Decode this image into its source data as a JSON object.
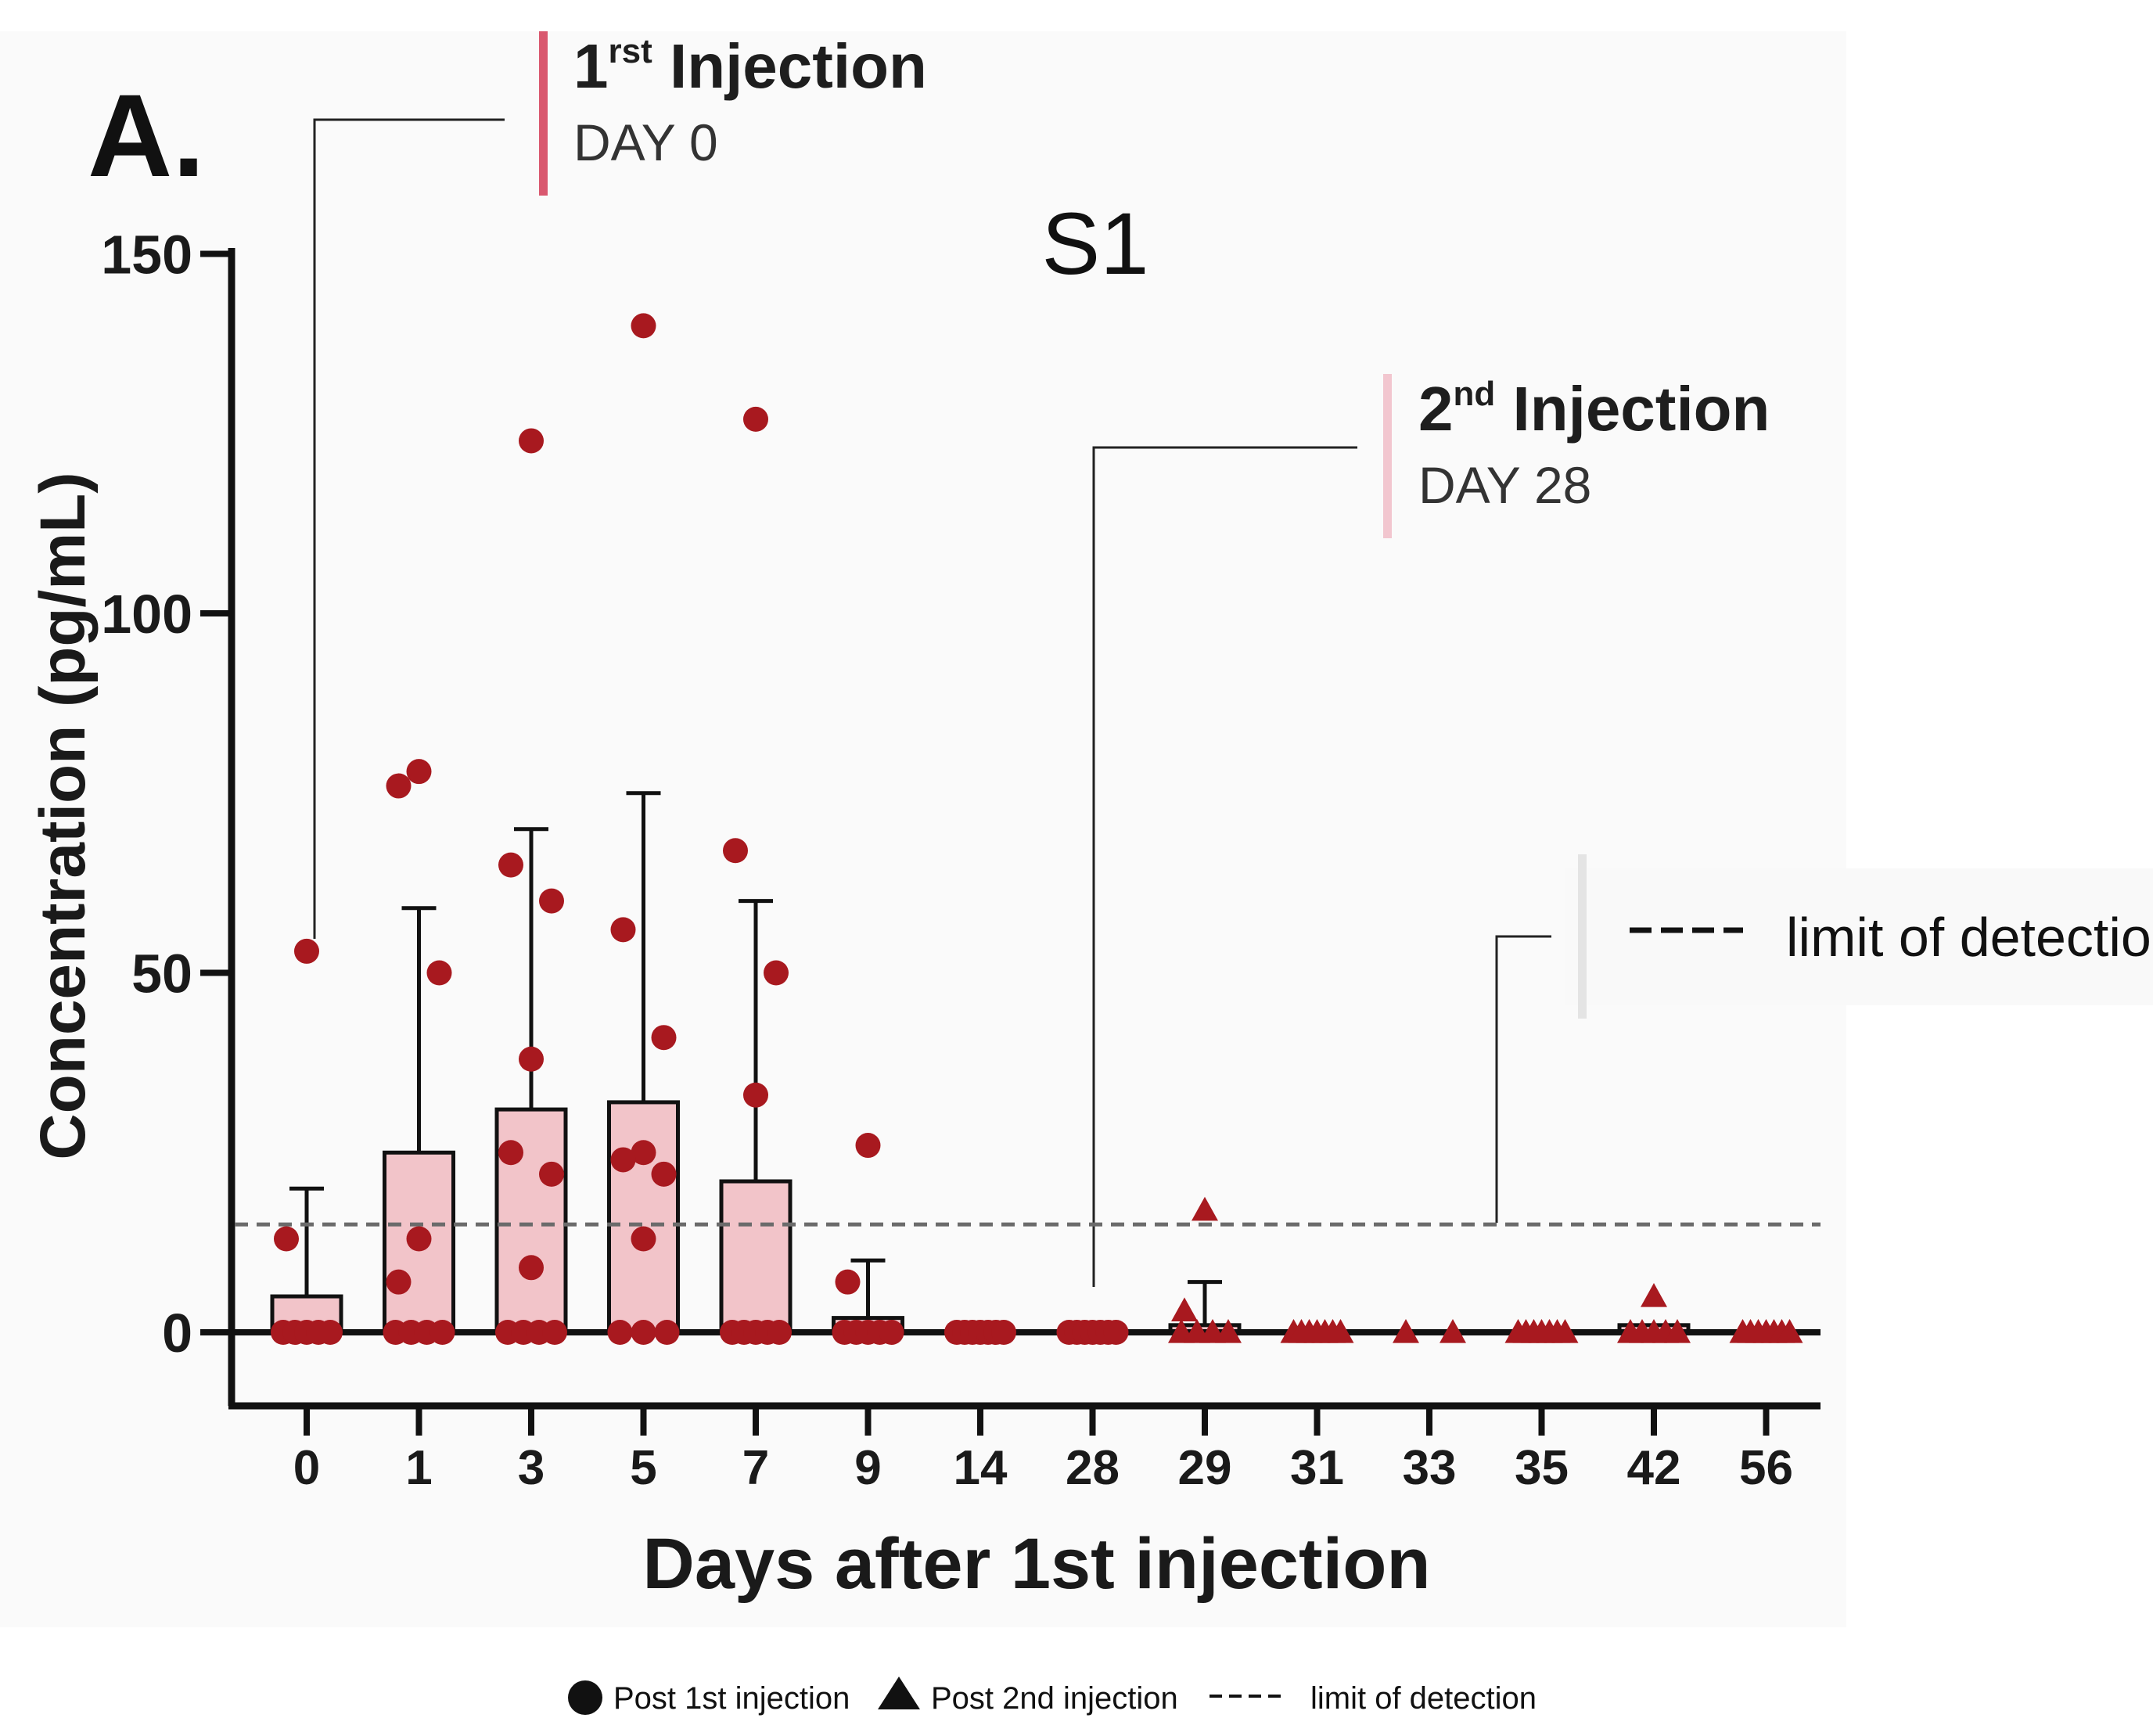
{
  "panel_letter": "A.",
  "colors": {
    "point": "#a8191f",
    "bar_fill": "#f2c4c9",
    "bar_stroke": "#111111",
    "axis": "#111111",
    "lod_line": "#6b6b6b",
    "callout_first": "#d9586f",
    "callout_second": "#f2c6cf",
    "callout_lod": "#e4e4e4",
    "leader": "#222222"
  },
  "annotations": {
    "first": {
      "base": "1",
      "sup": "rst",
      "rest": " Injection",
      "day": "DAY 0"
    },
    "second": {
      "base": "2",
      "sup": "nd",
      "rest": " Injection",
      "day": "DAY 28"
    },
    "lod": {
      "label": "limit of detection"
    }
  },
  "legend": {
    "circle_label": "Post 1st injection",
    "triangle_label": "Post 2nd injection",
    "dash_label": "limit of detection"
  },
  "chart_data": {
    "type": "bar",
    "title": "S1",
    "xlabel": "Days after 1st injection",
    "ylabel": "Concentration (pg/mL)",
    "ylim": [
      -10,
      150
    ],
    "yticks": [
      0,
      50,
      100,
      150
    ],
    "grid": false,
    "legend_position": "bottom",
    "categories": [
      "0",
      "1",
      "3",
      "5",
      "7",
      "9",
      "14",
      "28",
      "29",
      "31",
      "33",
      "35",
      "42",
      "56"
    ],
    "limit_of_detection": 15,
    "series": [
      {
        "name": "Post 1st injection",
        "marker": "circle",
        "categories": [
          "0",
          "1",
          "3",
          "5",
          "7",
          "9",
          "14",
          "28"
        ],
        "mean": [
          5,
          25,
          31,
          32,
          21,
          2,
          0,
          0
        ],
        "error_upper": [
          20,
          59,
          70,
          75,
          60,
          10,
          0,
          0
        ],
        "points": [
          [
            53,
            13,
            0,
            0,
            0,
            0,
            0
          ],
          [
            78,
            76,
            50,
            13,
            7,
            0,
            0,
            0,
            0
          ],
          [
            124,
            65,
            60,
            38,
            25,
            22,
            9,
            0,
            0,
            0,
            0
          ],
          [
            140,
            56,
            41,
            25,
            24,
            22,
            13,
            0,
            0,
            0
          ],
          [
            127,
            67,
            50,
            33,
            0,
            0,
            0,
            0,
            0
          ],
          [
            26,
            7,
            0,
            0,
            0,
            0,
            0
          ],
          [
            0,
            0,
            0,
            0,
            0,
            0,
            0
          ],
          [
            0,
            0,
            0,
            0,
            0,
            0,
            0
          ]
        ]
      },
      {
        "name": "Post 2nd injection",
        "marker": "triangle",
        "categories": [
          "29",
          "31",
          "33",
          "35",
          "42",
          "56"
        ],
        "mean": [
          1,
          0,
          0,
          0,
          1,
          0
        ],
        "error_upper": [
          7,
          0,
          0,
          0,
          1,
          0
        ],
        "points": [
          [
            17,
            3,
            0,
            0,
            0,
            0
          ],
          [
            0,
            0,
            0,
            0,
            0,
            0,
            0
          ],
          [
            0,
            0
          ],
          [
            0,
            0,
            0,
            0,
            0,
            0,
            0
          ],
          [
            5,
            0,
            0,
            0,
            0,
            0
          ],
          [
            0,
            0,
            0,
            0,
            0,
            0,
            0
          ]
        ]
      }
    ]
  }
}
